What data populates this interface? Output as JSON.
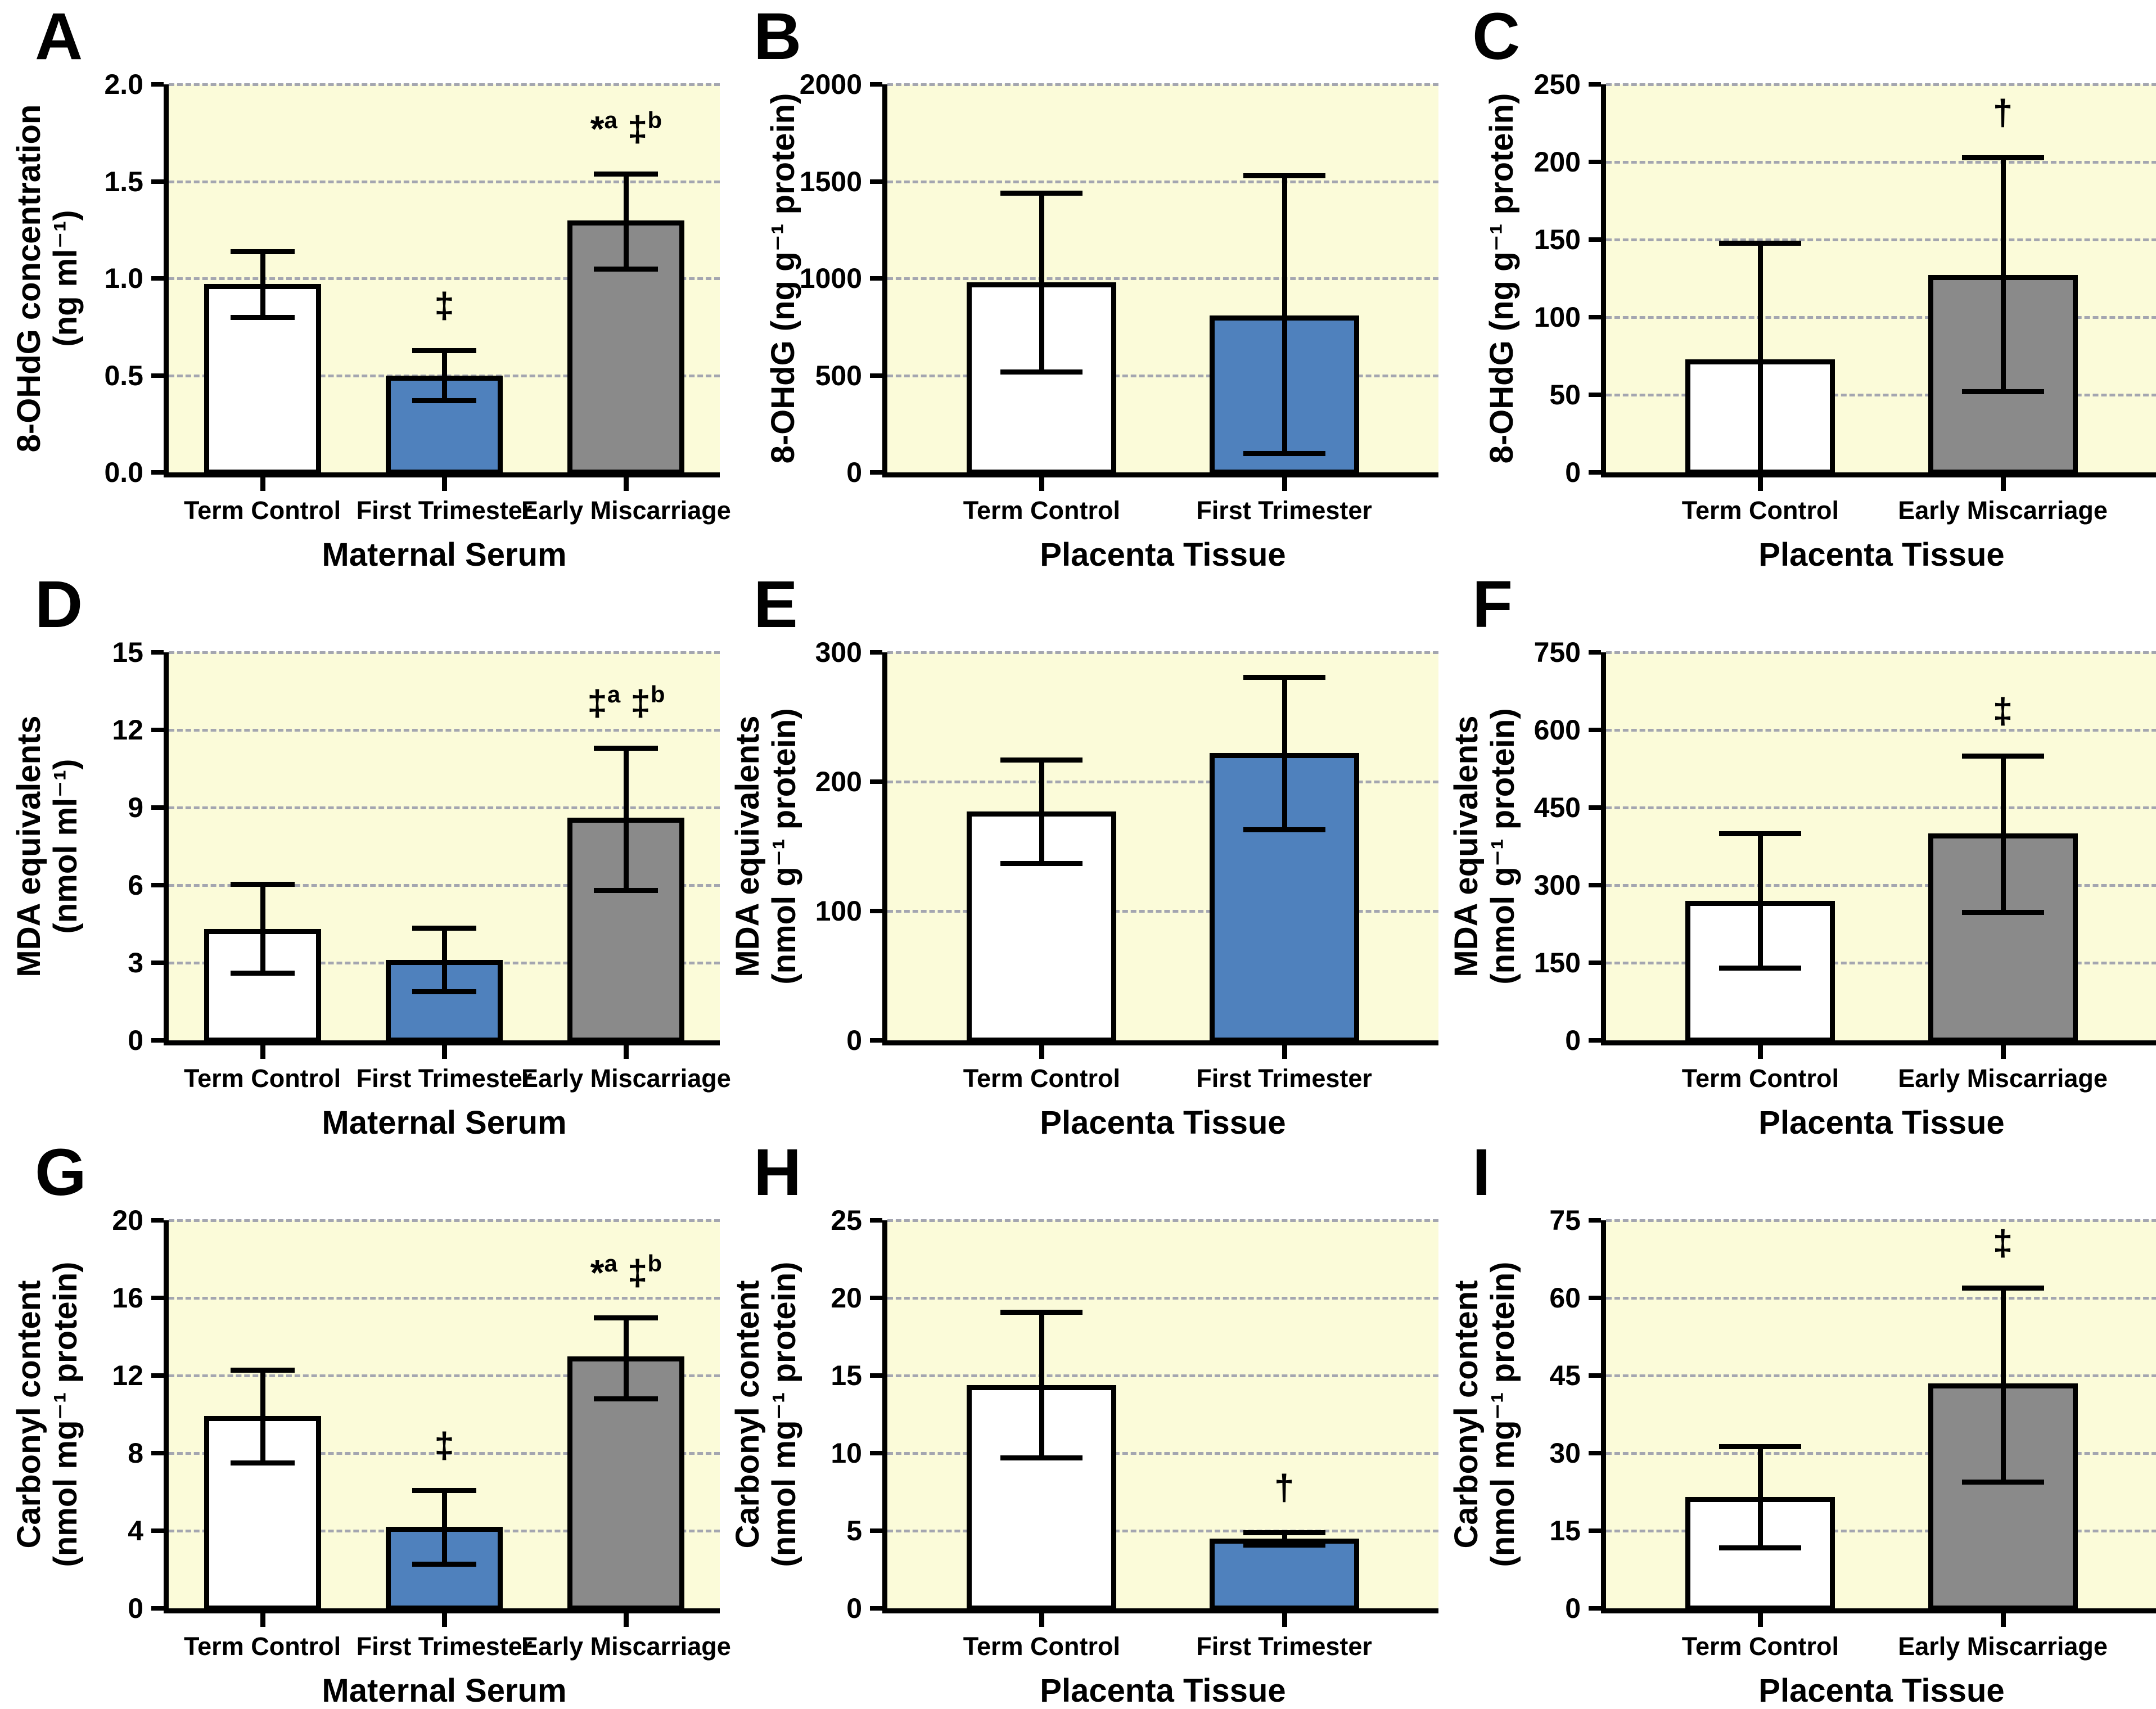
{
  "figure": {
    "title": "",
    "background": "#FFFFFF",
    "plot_background": "#FBFBD9",
    "grid_color": "#A4A6B0",
    "axis_color": "#000000",
    "bar_colors": {
      "Term Control": "#FFFFFF",
      "First Trimester": "#4F81BD",
      "Early Miscarriage": "#8A8A8A"
    },
    "legend_position": "none",
    "grid": "dashed horizontal at each labeled tick"
  },
  "chart_data": [
    {
      "type": "bar",
      "panel": "A",
      "ylabel_lines": [
        "8-OHdG concentration",
        "(ng ml⁻¹)"
      ],
      "xlabel": "Maternal Serum",
      "ylim": [
        0,
        2.0
      ],
      "ytick_values": [
        0,
        0.5,
        1.0,
        1.5,
        2.0
      ],
      "ytick_labels": [
        "0.0",
        "0.5",
        "1.0",
        "1.5",
        "2.0"
      ],
      "categories": [
        "Term Control",
        "First Trimester",
        "Early Miscarriage"
      ],
      "values": [
        0.97,
        0.5,
        1.3
      ],
      "error_low": [
        0.8,
        0.37,
        1.05
      ],
      "error_high": [
        1.14,
        0.63,
        1.54
      ],
      "annotations": [
        [],
        [
          [
            "‡",
            ""
          ]
        ],
        [
          [
            "*",
            "a"
          ],
          [
            "‡",
            "b"
          ]
        ]
      ]
    },
    {
      "type": "bar",
      "panel": "B",
      "ylabel_lines": [
        "8-OHdG (ng g⁻¹ protein)"
      ],
      "xlabel": "Placenta Tissue",
      "ylim": [
        0,
        2000
      ],
      "ytick_values": [
        0,
        500,
        1000,
        1500,
        2000
      ],
      "ytick_labels": [
        "0",
        "500",
        "1000",
        "1500",
        "2000"
      ],
      "categories": [
        "Term Control",
        "First Trimester"
      ],
      "values": [
        980,
        810
      ],
      "error_low": [
        520,
        100
      ],
      "error_high": [
        1440,
        1530
      ],
      "annotations": [
        [],
        []
      ]
    },
    {
      "type": "bar",
      "panel": "C",
      "ylabel_lines": [
        "8-OHdG (ng g⁻¹ protein)"
      ],
      "xlabel": "Placenta Tissue",
      "ylim": [
        0,
        250
      ],
      "ytick_values": [
        0,
        50,
        100,
        150,
        200,
        250
      ],
      "ytick_labels": [
        "0",
        "50",
        "100",
        "150",
        "200",
        "250"
      ],
      "categories": [
        "Term Control",
        "Early Miscarriage"
      ],
      "values": [
        73,
        127
      ],
      "error_low": [
        0,
        52
      ],
      "error_high": [
        148,
        203
      ],
      "annotations": [
        [],
        [
          [
            "†",
            ""
          ]
        ]
      ]
    },
    {
      "type": "bar",
      "panel": "D",
      "ylabel_lines": [
        "MDA equivalents",
        "(nmol ml⁻¹)"
      ],
      "xlabel": "Maternal Serum",
      "ylim": [
        0,
        15
      ],
      "ytick_values": [
        0,
        3,
        6,
        9,
        12,
        15
      ],
      "ytick_labels": [
        "0",
        "3",
        "6",
        "9",
        "12",
        "15"
      ],
      "categories": [
        "Term Control",
        "First Trimester",
        "Early Miscarriage"
      ],
      "values": [
        4.3,
        3.1,
        8.6
      ],
      "error_low": [
        2.6,
        1.9,
        5.8
      ],
      "error_high": [
        6.05,
        4.35,
        11.3
      ],
      "annotations": [
        [],
        [],
        [
          [
            "‡",
            "a"
          ],
          [
            "‡",
            "b"
          ]
        ]
      ]
    },
    {
      "type": "bar",
      "panel": "E",
      "ylabel_lines": [
        "MDA equivalents",
        "(nmol g⁻¹ protein)"
      ],
      "xlabel": "Placenta Tissue",
      "ylim": [
        0,
        300
      ],
      "ytick_values": [
        0,
        100,
        200,
        300
      ],
      "ytick_labels": [
        "0",
        "100",
        "200",
        "300"
      ],
      "categories": [
        "Term Control",
        "First Trimester"
      ],
      "values": [
        177,
        222
      ],
      "error_low": [
        137,
        163
      ],
      "error_high": [
        217,
        281
      ],
      "annotations": [
        [],
        []
      ]
    },
    {
      "type": "bar",
      "panel": "F",
      "ylabel_lines": [
        "MDA equivalents",
        "(nmol g⁻¹ protein)"
      ],
      "xlabel": "Placenta Tissue",
      "ylim": [
        0,
        750
      ],
      "ytick_values": [
        0,
        150,
        300,
        450,
        600,
        750
      ],
      "ytick_labels": [
        "0",
        "150",
        "300",
        "450",
        "600",
        "750"
      ],
      "categories": [
        "Term Control",
        "Early Miscarriage"
      ],
      "values": [
        270,
        400
      ],
      "error_low": [
        140,
        248
      ],
      "error_high": [
        400,
        550
      ],
      "annotations": [
        [],
        [
          [
            "‡",
            ""
          ]
        ]
      ]
    },
    {
      "type": "bar",
      "panel": "G",
      "ylabel_lines": [
        "Carbonyl content",
        "(nmol mg⁻¹ protein)"
      ],
      "xlabel": "Maternal Serum",
      "ylim": [
        0,
        20
      ],
      "ytick_values": [
        0,
        4,
        8,
        12,
        16,
        20
      ],
      "ytick_labels": [
        "0",
        "4",
        "8",
        "12",
        "16",
        "20"
      ],
      "categories": [
        "Term Control",
        "First Trimester",
        "Early Miscarriage"
      ],
      "values": [
        9.9,
        4.2,
        13.0
      ],
      "error_low": [
        7.5,
        2.3,
        10.8
      ],
      "error_high": [
        12.3,
        6.1,
        15.0
      ],
      "annotations": [
        [],
        [
          [
            "‡",
            ""
          ]
        ],
        [
          [
            "*",
            "a"
          ],
          [
            "‡",
            "b"
          ]
        ]
      ]
    },
    {
      "type": "bar",
      "panel": "H",
      "ylabel_lines": [
        "Carbonyl content",
        "(nmol mg⁻¹ protein)"
      ],
      "xlabel": "Placenta Tissue",
      "ylim": [
        0,
        25
      ],
      "ytick_values": [
        0,
        5,
        10,
        15,
        20,
        25
      ],
      "ytick_labels": [
        "0",
        "5",
        "10",
        "15",
        "20",
        "25"
      ],
      "categories": [
        "Term Control",
        "First Trimester"
      ],
      "values": [
        14.4,
        4.5
      ],
      "error_low": [
        9.7,
        4.1
      ],
      "error_high": [
        19.1,
        4.9
      ],
      "annotations": [
        [],
        [
          [
            "†",
            ""
          ]
        ]
      ]
    },
    {
      "type": "bar",
      "panel": "I",
      "ylabel_lines": [
        "Carbonyl content",
        "(nmol mg⁻¹ protein)"
      ],
      "xlabel": "Placenta Tissue",
      "ylim": [
        0,
        75
      ],
      "ytick_values": [
        0,
        15,
        30,
        45,
        60,
        75
      ],
      "ytick_labels": [
        "0",
        "15",
        "30",
        "45",
        "60",
        "75"
      ],
      "categories": [
        "Term Control",
        "Early Miscarriage"
      ],
      "values": [
        21.5,
        43.5
      ],
      "error_low": [
        11.7,
        24.5
      ],
      "error_high": [
        31.3,
        62.0
      ],
      "annotations": [
        [],
        [
          [
            "‡",
            ""
          ]
        ]
      ]
    }
  ]
}
